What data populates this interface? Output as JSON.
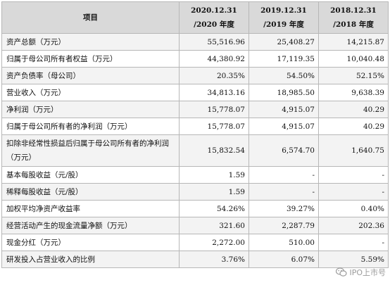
{
  "table": {
    "header": {
      "item": "项目",
      "cols": [
        {
          "line1": "2020.12.31",
          "line2": "/2020 年度"
        },
        {
          "line1": "2019.12.31",
          "line2": "/2019 年度"
        },
        {
          "line1": "2018.12.31",
          "line2": "/2018 年度"
        }
      ]
    },
    "rows": [
      {
        "label": "资产总额（万元）",
        "v2020": "55,516.96",
        "v2019": "25,408.27",
        "v2018": "14,215.87"
      },
      {
        "label": "归属于母公司所有者权益（万元）",
        "v2020": "44,380.92",
        "v2019": "17,119.35",
        "v2018": "10,040.48"
      },
      {
        "label": "资产负债率（母公司）",
        "v2020": "20.35%",
        "v2019": "54.50%",
        "v2018": "52.15%"
      },
      {
        "label": "营业收入（万元）",
        "v2020": "34,813.16",
        "v2019": "18,985.50",
        "v2018": "9,638.39"
      },
      {
        "label": "净利润（万元）",
        "v2020": "15,778.07",
        "v2019": "4,915.07",
        "v2018": "40.29"
      },
      {
        "label": "归属于母公司所有者的净利润（万元）",
        "v2020": "15,778.07",
        "v2019": "4,915.07",
        "v2018": "40.29"
      },
      {
        "label": "扣除非经常性损益后归属于母公司所有者的净利润（万元）",
        "v2020": "15,832.54",
        "v2019": "6,574.70",
        "v2018": "1,640.75"
      },
      {
        "label": "基本每股收益（元/股）",
        "v2020": "1.59",
        "v2019": "-",
        "v2018": "-"
      },
      {
        "label": "稀释每股收益（元/股）",
        "v2020": "1.59",
        "v2019": "-",
        "v2018": "-"
      },
      {
        "label": "加权平均净资产收益率",
        "v2020": "54.26%",
        "v2019": "39.27%",
        "v2018": "0.40%"
      },
      {
        "label": "经营活动产生的现金流量净额（万元）",
        "v2020": "321.60",
        "v2019": "2,287.79",
        "v2018": "202.36"
      },
      {
        "label": "现金分红（万元）",
        "v2020": "2,272.00",
        "v2019": "510.00",
        "v2018": "-"
      },
      {
        "label": "研发投入占营业收入的比例",
        "v2020": "3.76%",
        "v2019": "6.07%",
        "v2018": "5.59%"
      }
    ]
  },
  "watermark": {
    "text": "IPO上市号",
    "icon": "wechat-icon"
  }
}
